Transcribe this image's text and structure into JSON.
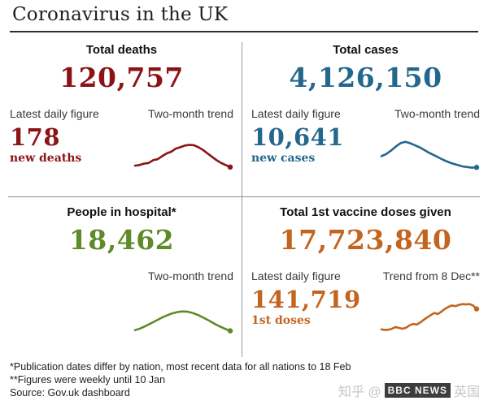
{
  "title": "Coronavirus in the UK",
  "colors": {
    "deaths": "#8b1316",
    "cases": "#24678d",
    "hospital": "#5e8a28",
    "vaccine": "#c36420",
    "divider": "#9a9a9a"
  },
  "quadrants": {
    "deaths": {
      "header": "Total deaths",
      "total": "120,757",
      "label_left": "Latest daily figure",
      "label_right": "Two-month trend",
      "latest": "178",
      "latest_caption": "new deaths"
    },
    "cases": {
      "header": "Total cases",
      "total": "4,126,150",
      "label_left": "Latest daily figure",
      "label_right": "Two-month trend",
      "latest": "10,641",
      "latest_caption": "new cases"
    },
    "hospital": {
      "header": "People in hospital*",
      "total": "18,462",
      "label_right": "Two-month trend"
    },
    "vaccine": {
      "header": "Total 1st vaccine doses given",
      "total": "17,723,840",
      "label_left": "Latest daily figure",
      "label_right": "Trend from 8 Dec**",
      "latest": "141,719",
      "latest_caption": "1st doses"
    }
  },
  "footnotes": [
    "*Publication dates differ by nation, most recent data for all nations to 18 Feb",
    "**Figures were weekly until 10 Jan",
    "Source: Gov.uk dashboard"
  ],
  "watermark": {
    "prefix": "知乎 @",
    "overlay": "BBC NEWS",
    "suffix": "英国"
  },
  "chart_data": [
    {
      "id": "deaths",
      "type": "line",
      "title": "Total deaths",
      "total": 120757,
      "latest_daily_figure": 178,
      "latest_caption": "new deaths",
      "trend_label": "Two-month trend",
      "color": "#8b1316",
      "trend_normalized": [
        0.14,
        0.16,
        0.2,
        0.22,
        0.3,
        0.33,
        0.42,
        0.5,
        0.55,
        0.64,
        0.68,
        0.73,
        0.75,
        0.74,
        0.68,
        0.6,
        0.5,
        0.4,
        0.3,
        0.22,
        0.16,
        0.1
      ]
    },
    {
      "id": "cases",
      "type": "line",
      "title": "Total cases",
      "total": 4126150,
      "latest_daily_figure": 10641,
      "latest_caption": "new cases",
      "trend_label": "Two-month trend",
      "color": "#24678d",
      "trend_normalized": [
        0.42,
        0.48,
        0.58,
        0.7,
        0.8,
        0.84,
        0.8,
        0.74,
        0.68,
        0.6,
        0.52,
        0.45,
        0.38,
        0.31,
        0.25,
        0.2,
        0.16,
        0.12,
        0.1,
        0.08,
        0.09
      ]
    },
    {
      "id": "hospital",
      "type": "line",
      "title": "People in hospital*",
      "total": 18462,
      "trend_label": "Two-month trend",
      "color": "#5e8a28",
      "trend_normalized": [
        0.22,
        0.27,
        0.34,
        0.42,
        0.5,
        0.58,
        0.65,
        0.71,
        0.75,
        0.77,
        0.76,
        0.72,
        0.66,
        0.58,
        0.5,
        0.41,
        0.33,
        0.26,
        0.2
      ]
    },
    {
      "id": "vaccine",
      "type": "line",
      "title": "Total 1st vaccine doses given",
      "total": 17723840,
      "latest_daily_figure": 141719,
      "latest_caption": "1st doses",
      "trend_label": "Trend from 8 Dec**",
      "color": "#c36420",
      "trend_normalized": [
        0.1,
        0.08,
        0.09,
        0.12,
        0.17,
        0.14,
        0.12,
        0.15,
        0.22,
        0.26,
        0.24,
        0.3,
        0.38,
        0.45,
        0.52,
        0.58,
        0.55,
        0.62,
        0.7,
        0.76,
        0.8,
        0.78,
        0.82,
        0.84,
        0.83,
        0.84,
        0.8,
        0.7
      ]
    }
  ]
}
